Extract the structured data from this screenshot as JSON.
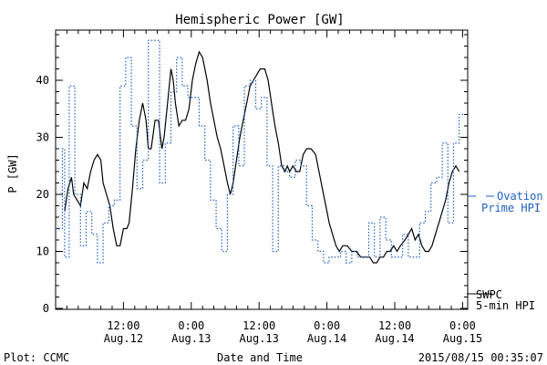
{
  "chart_data": {
    "type": "line",
    "title": "Hemispheric Power [GW]",
    "xlabel": "Date and Time",
    "ylabel": "P [GW]",
    "ylim": [
      0,
      50
    ],
    "xlim_hours": [
      0,
      72.5
    ],
    "y_ticks": [
      0,
      10,
      20,
      30,
      40
    ],
    "x_ticks": [
      {
        "line1": "12:00",
        "line2": "Aug.12",
        "t": 12
      },
      {
        "line1": "0:00",
        "line2": "Aug.13",
        "t": 24
      },
      {
        "line1": "12:00",
        "line2": "Aug.13",
        "t": 36
      },
      {
        "line1": "0:00",
        "line2": "Aug.14",
        "t": 48
      },
      {
        "line1": "12:00",
        "line2": "Aug.14",
        "t": 60
      },
      {
        "line1": "0:00",
        "line2": "Aug.15",
        "t": 72
      }
    ],
    "x_unit_note": "t = hours since 0:00 Aug.12",
    "series": [
      {
        "name": "SWPC 5-min HPI",
        "style": "solid",
        "color": "#000000",
        "points": [
          [
            1.6,
            17
          ],
          [
            2.2,
            21
          ],
          [
            2.8,
            23
          ],
          [
            3.2,
            20
          ],
          [
            3.8,
            19
          ],
          [
            4.4,
            18
          ],
          [
            5,
            22
          ],
          [
            5.6,
            21
          ],
          [
            6.2,
            24
          ],
          [
            6.8,
            26
          ],
          [
            7.4,
            27
          ],
          [
            8,
            26
          ],
          [
            8.4,
            22
          ],
          [
            9,
            20
          ],
          [
            9.6,
            18
          ],
          [
            10.2,
            14
          ],
          [
            10.8,
            11
          ],
          [
            11.4,
            11
          ],
          [
            12,
            14
          ],
          [
            12.6,
            14
          ],
          [
            13,
            15
          ],
          [
            13.6,
            21
          ],
          [
            14.2,
            28
          ],
          [
            14.8,
            33
          ],
          [
            15.4,
            36
          ],
          [
            16,
            33
          ],
          [
            16.4,
            28
          ],
          [
            16.9,
            28
          ],
          [
            17.6,
            33
          ],
          [
            18.2,
            33
          ],
          [
            18.8,
            28
          ],
          [
            19.2,
            30
          ],
          [
            19.8,
            36
          ],
          [
            20.4,
            42
          ],
          [
            20.8,
            40
          ],
          [
            21.2,
            36
          ],
          [
            21.8,
            32
          ],
          [
            22.4,
            33
          ],
          [
            23,
            33
          ],
          [
            23.6,
            35
          ],
          [
            24.2,
            40
          ],
          [
            24.8,
            43
          ],
          [
            25.4,
            45
          ],
          [
            26,
            44
          ],
          [
            26.8,
            40
          ],
          [
            27.4,
            36
          ],
          [
            28,
            33
          ],
          [
            28.6,
            30
          ],
          [
            29.2,
            28
          ],
          [
            29.8,
            25
          ],
          [
            30.4,
            22
          ],
          [
            30.9,
            20
          ],
          [
            31.4,
            22
          ],
          [
            32,
            26
          ],
          [
            32.6,
            30
          ],
          [
            33.2,
            33
          ],
          [
            33.8,
            36
          ],
          [
            34.4,
            39
          ],
          [
            35,
            40
          ],
          [
            35.6,
            41
          ],
          [
            36.2,
            42
          ],
          [
            37,
            42
          ],
          [
            37.6,
            40
          ],
          [
            38.2,
            36
          ],
          [
            38.8,
            32
          ],
          [
            39.4,
            29
          ],
          [
            40,
            25
          ],
          [
            40.6,
            24
          ],
          [
            41,
            25
          ],
          [
            41.4,
            24
          ],
          [
            42,
            25
          ],
          [
            42.6,
            24
          ],
          [
            43.2,
            24
          ],
          [
            43.8,
            27
          ],
          [
            44.4,
            28
          ],
          [
            45.2,
            28
          ],
          [
            46,
            27
          ],
          [
            46.6,
            24
          ],
          [
            47.2,
            21
          ],
          [
            47.8,
            18
          ],
          [
            48.4,
            15
          ],
          [
            49,
            13
          ],
          [
            49.6,
            11
          ],
          [
            50.2,
            10
          ],
          [
            50.8,
            11
          ],
          [
            51.6,
            11
          ],
          [
            52.4,
            10
          ],
          [
            53.2,
            10
          ],
          [
            54,
            9
          ],
          [
            54.8,
            9
          ],
          [
            55.6,
            9
          ],
          [
            56.2,
            8
          ],
          [
            56.8,
            8
          ],
          [
            57.4,
            9
          ],
          [
            58,
            9
          ],
          [
            58.6,
            10
          ],
          [
            59.2,
            10
          ],
          [
            59.8,
            11
          ],
          [
            60.4,
            10
          ],
          [
            61,
            11
          ],
          [
            61.8,
            12
          ],
          [
            62.4,
            13
          ],
          [
            63,
            14
          ],
          [
            63.6,
            12
          ],
          [
            64.2,
            13
          ],
          [
            64.8,
            11
          ],
          [
            65.4,
            10
          ],
          [
            66,
            10
          ],
          [
            66.6,
            11
          ],
          [
            67.2,
            13
          ],
          [
            67.8,
            15
          ],
          [
            68.4,
            17
          ],
          [
            69,
            19
          ],
          [
            69.6,
            22
          ],
          [
            70.2,
            24
          ],
          [
            70.8,
            25
          ],
          [
            71.4,
            24
          ]
        ]
      },
      {
        "name": "Ovation Prime HPI",
        "style": "dotted-step",
        "color": "#1f5fbf",
        "points": [
          [
            0,
            14
          ],
          [
            1.2,
            28
          ],
          [
            1.6,
            9
          ],
          [
            2.4,
            39
          ],
          [
            3.4,
            20
          ],
          [
            4.4,
            11
          ],
          [
            5.4,
            17
          ],
          [
            6.4,
            13
          ],
          [
            7.4,
            8
          ],
          [
            8.4,
            15
          ],
          [
            9.4,
            18
          ],
          [
            10.4,
            19
          ],
          [
            11.4,
            39
          ],
          [
            12.4,
            44
          ],
          [
            13.4,
            32
          ],
          [
            14.4,
            21
          ],
          [
            15.4,
            26
          ],
          [
            16.4,
            47
          ],
          [
            18.4,
            22
          ],
          [
            19.4,
            29
          ],
          [
            20.4,
            38
          ],
          [
            21.4,
            44
          ],
          [
            22.4,
            39
          ],
          [
            23.4,
            37
          ],
          [
            25.4,
            32
          ],
          [
            26.4,
            26
          ],
          [
            27.4,
            19
          ],
          [
            28.4,
            14
          ],
          [
            29.4,
            10
          ],
          [
            30.4,
            20
          ],
          [
            31.4,
            32
          ],
          [
            32.4,
            25
          ],
          [
            33.4,
            39
          ],
          [
            34.4,
            40
          ],
          [
            35.4,
            35
          ],
          [
            36.4,
            37
          ],
          [
            37.4,
            25
          ],
          [
            38.4,
            10
          ],
          [
            39.4,
            25
          ],
          [
            40.4,
            24
          ],
          [
            41.4,
            23
          ],
          [
            42.4,
            26
          ],
          [
            43.4,
            25
          ],
          [
            44.4,
            18
          ],
          [
            45.4,
            12
          ],
          [
            46.4,
            10
          ],
          [
            47.4,
            8
          ],
          [
            48.4,
            9
          ],
          [
            49.4,
            9
          ],
          [
            50.4,
            10
          ],
          [
            51.4,
            8
          ],
          [
            52.4,
            10
          ],
          [
            53.4,
            9
          ],
          [
            54.4,
            9
          ],
          [
            55.4,
            15
          ],
          [
            56.4,
            9
          ],
          [
            57.4,
            16
          ],
          [
            58.4,
            12
          ],
          [
            59.4,
            9
          ],
          [
            60.4,
            9
          ],
          [
            61.4,
            13
          ],
          [
            62.4,
            9
          ],
          [
            64.4,
            15
          ],
          [
            65.4,
            17
          ],
          [
            66.4,
            22
          ],
          [
            67.4,
            23
          ],
          [
            68.4,
            29
          ],
          [
            69.4,
            15
          ],
          [
            70.4,
            29
          ],
          [
            71.4,
            34
          ]
        ]
      }
    ],
    "legend": {
      "placement": "right",
      "items": [
        {
          "label_line1": "SWPC",
          "label_line2": "5-min HPI",
          "color": "#000000",
          "style": "solid"
        },
        {
          "label_line1": "Ovation",
          "label_line2": "Prime HPI",
          "color": "#1f5fbf",
          "style": "dashed"
        }
      ]
    },
    "footer": {
      "left": "Plot: CCMC",
      "right": "2015/08/15 00:35:07"
    }
  }
}
